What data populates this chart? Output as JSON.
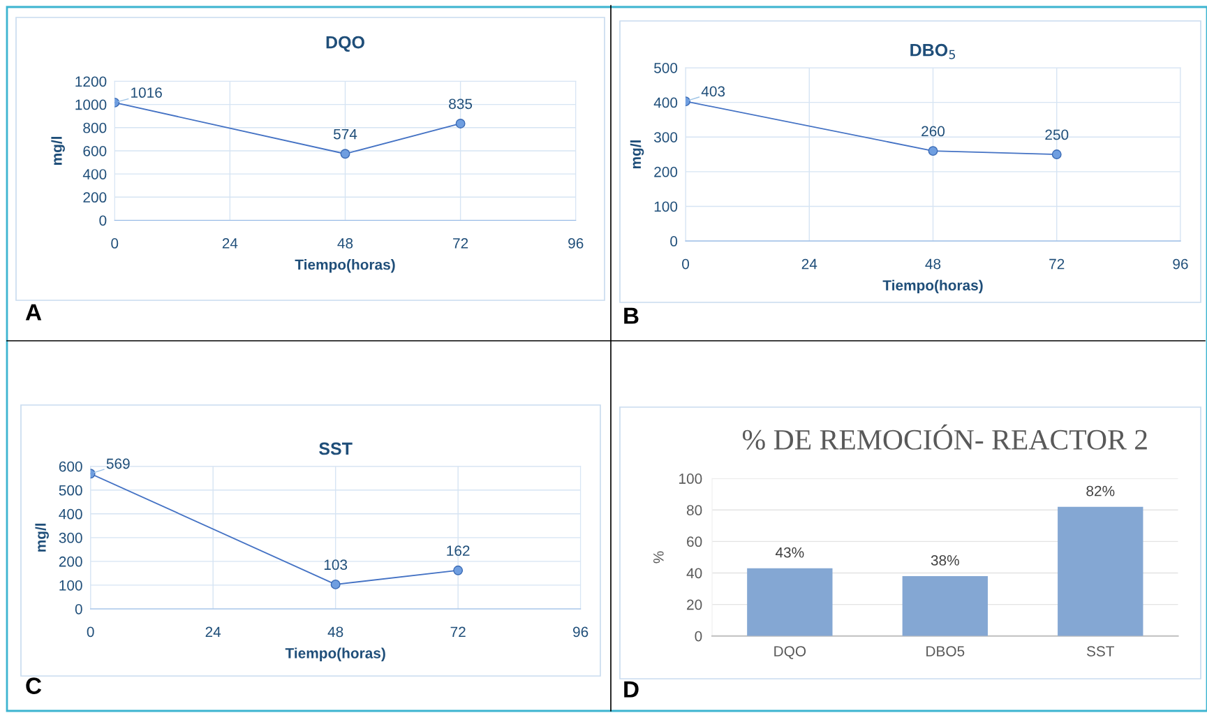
{
  "chart_data": [
    {
      "type": "line",
      "title": "DQO",
      "xlabel": "Tiempo(horas)",
      "ylabel": "mg/l",
      "x": [
        0,
        48,
        72
      ],
      "series": [
        {
          "color": "#4472c4",
          "values": [
            1016,
            574,
            835
          ]
        }
      ],
      "xlim": [
        0,
        96
      ],
      "xticks": [
        0,
        24,
        48,
        72,
        96
      ],
      "ylim": [
        0,
        1200
      ],
      "yticks": [
        0,
        200,
        400,
        600,
        800,
        1000,
        1200
      ],
      "grid": true,
      "marker": "circle",
      "data_labels": true,
      "annotations": [
        "A"
      ]
    },
    {
      "type": "line",
      "title": "DBO$_{5}$",
      "xlabel": "Tiempo(horas)",
      "ylabel": "mg/l",
      "x": [
        0,
        48,
        72
      ],
      "series": [
        {
          "color": "#4472c4",
          "values": [
            403,
            260,
            250
          ]
        }
      ],
      "xlim": [
        0,
        96
      ],
      "xticks": [
        0,
        24,
        48,
        72,
        96
      ],
      "ylim": [
        0,
        500
      ],
      "yticks": [
        0,
        100,
        200,
        300,
        400,
        500
      ],
      "grid": true,
      "marker": "circle",
      "data_labels": true,
      "annotations": [
        "B"
      ]
    },
    {
      "type": "line",
      "title": "SST",
      "xlabel": "Tiempo(horas)",
      "ylabel": "mg/l",
      "x": [
        0,
        48,
        72
      ],
      "series": [
        {
          "color": "#4472c4",
          "values": [
            569,
            103,
            162
          ]
        }
      ],
      "xlim": [
        0,
        96
      ],
      "xticks": [
        0,
        24,
        48,
        72,
        96
      ],
      "ylim": [
        0,
        600
      ],
      "yticks": [
        0,
        100,
        200,
        300,
        400,
        500,
        600
      ],
      "grid": true,
      "marker": "circle",
      "data_labels": true,
      "annotations": [
        "C"
      ]
    },
    {
      "type": "bar",
      "title": "% DE REMOCIÓN- REACTOR 2",
      "ylabel": "%",
      "categories": [
        "DQO",
        "DBO5",
        "SST"
      ],
      "series": [
        {
          "color": "#84a7d3",
          "values": [
            43,
            38,
            82
          ]
        }
      ],
      "value_labels": [
        "43%",
        "38%",
        "82%"
      ],
      "ylim": [
        0,
        100
      ],
      "yticks": [
        0,
        20,
        40,
        60,
        80,
        100
      ],
      "grid": "y",
      "annotations": [
        "D"
      ]
    }
  ]
}
